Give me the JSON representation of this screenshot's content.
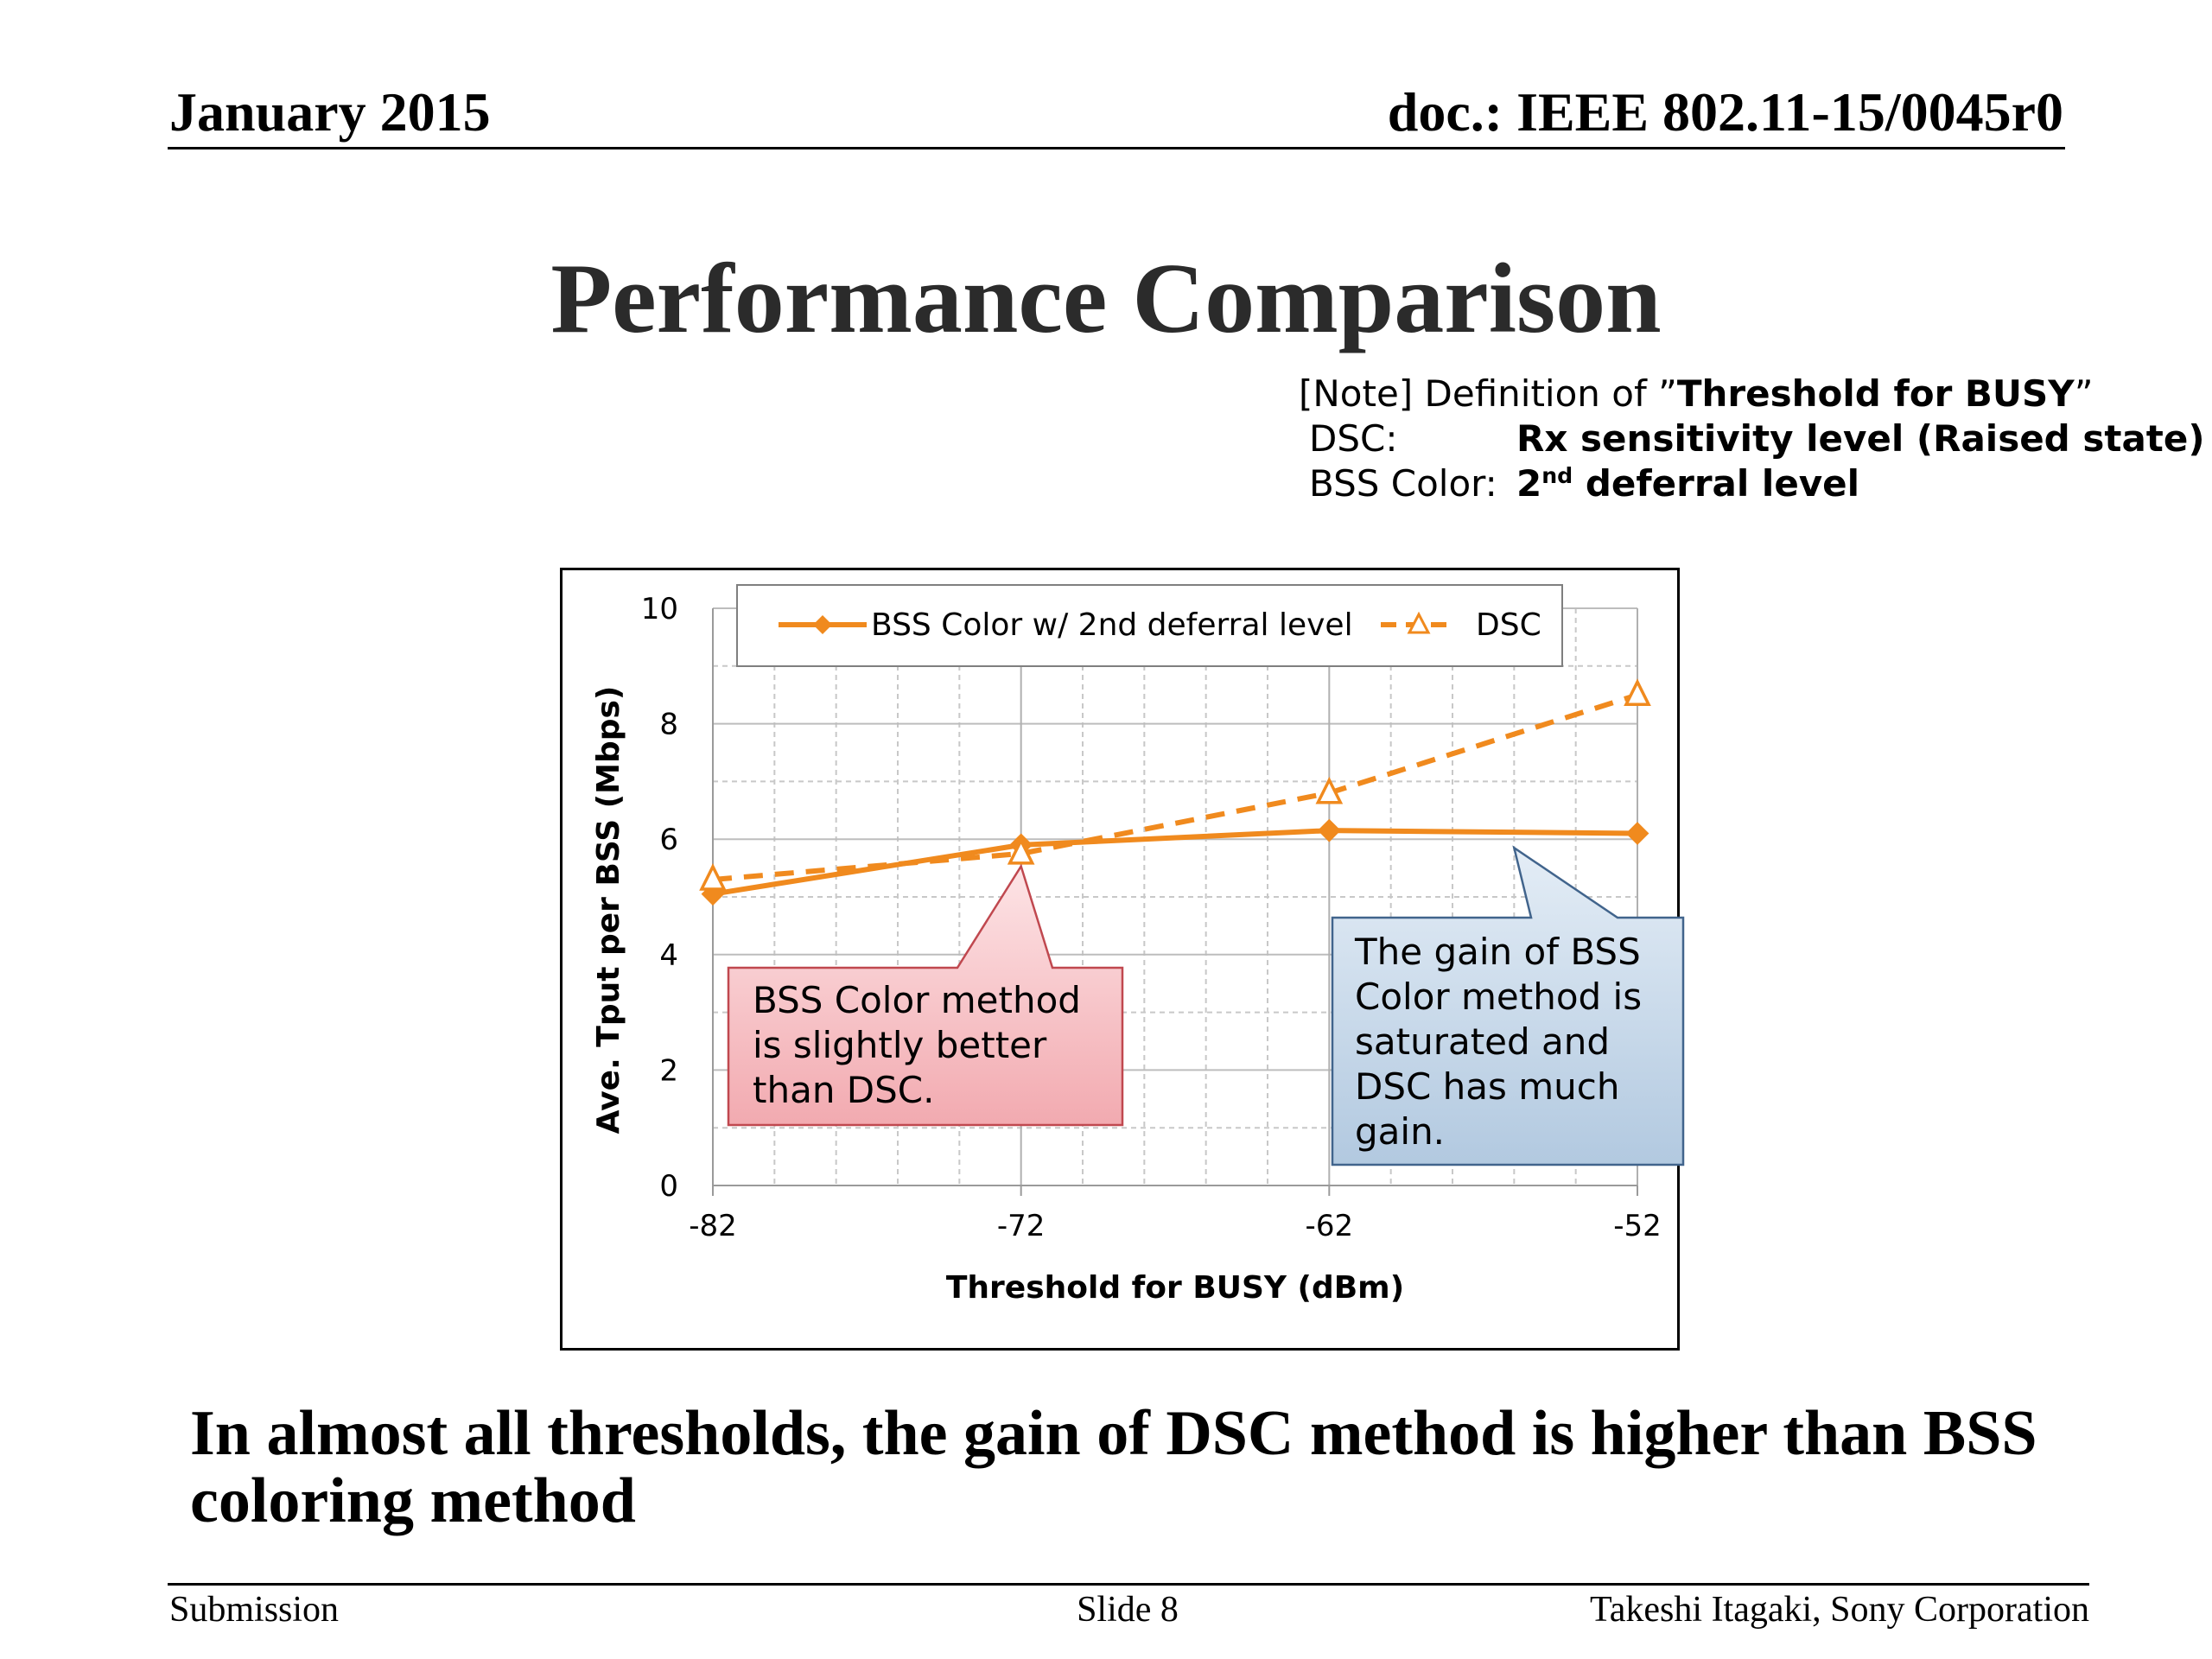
{
  "header": {
    "date": "January 2015",
    "doc": "doc.: IEEE 802.11-15/0045r0"
  },
  "title": "Performance Comparison",
  "note": {
    "prefix": "[Note] Definition of ”",
    "term": "Threshold for BUSY",
    "suffix": "”",
    "dsc_label": "DSC:",
    "dsc_value": "Rx sensitivity level (Raised state)",
    "bss_label": "BSS Color:",
    "bss_value_num": "2",
    "bss_value_sup": "nd",
    "bss_value_rest": " deferral level"
  },
  "chart_data": {
    "type": "line",
    "xlabel": "Threshold for BUSY (dBm)",
    "ylabel": "Ave. Tput per BSS (Mbps)",
    "x": [
      -82,
      -72,
      -62,
      -52
    ],
    "xlim": [
      -82,
      -52
    ],
    "ylim": [
      0,
      10
    ],
    "yticks": [
      0,
      2,
      4,
      6,
      8,
      10
    ],
    "grid": true,
    "legend_position": "top",
    "series": [
      {
        "name": "BSS Color w/ 2nd deferral level",
        "values": [
          5.05,
          5.9,
          6.15,
          6.1
        ],
        "color": "#f08a1e",
        "style": "solid",
        "marker": "diamond"
      },
      {
        "name": "DSC",
        "values": [
          5.3,
          5.75,
          6.8,
          8.5
        ],
        "color": "#f08a1e",
        "style": "dashed",
        "marker": "triangle-open"
      }
    ],
    "annotations": [
      {
        "text": "BSS Color method is slightly better than DSC.",
        "lines": [
          "BSS Color method",
          "is slightly better",
          "than DSC."
        ],
        "color": "red",
        "points_to": [
          -72,
          5.8
        ]
      },
      {
        "text": "The gain of BSS Color method is saturated and DSC has much gain.",
        "lines": [
          "The gain of BSS",
          "Color method is",
          "saturated and",
          "DSC has much",
          "gain."
        ],
        "color": "blue",
        "points_to": [
          -56,
          5.85
        ]
      }
    ]
  },
  "conclusion": "In almost all thresholds, the gain of DSC method is higher than BSS coloring method",
  "footer": {
    "left": "Submission",
    "center": "Slide 8",
    "right": "Takeshi Itagaki, Sony Corporation"
  }
}
